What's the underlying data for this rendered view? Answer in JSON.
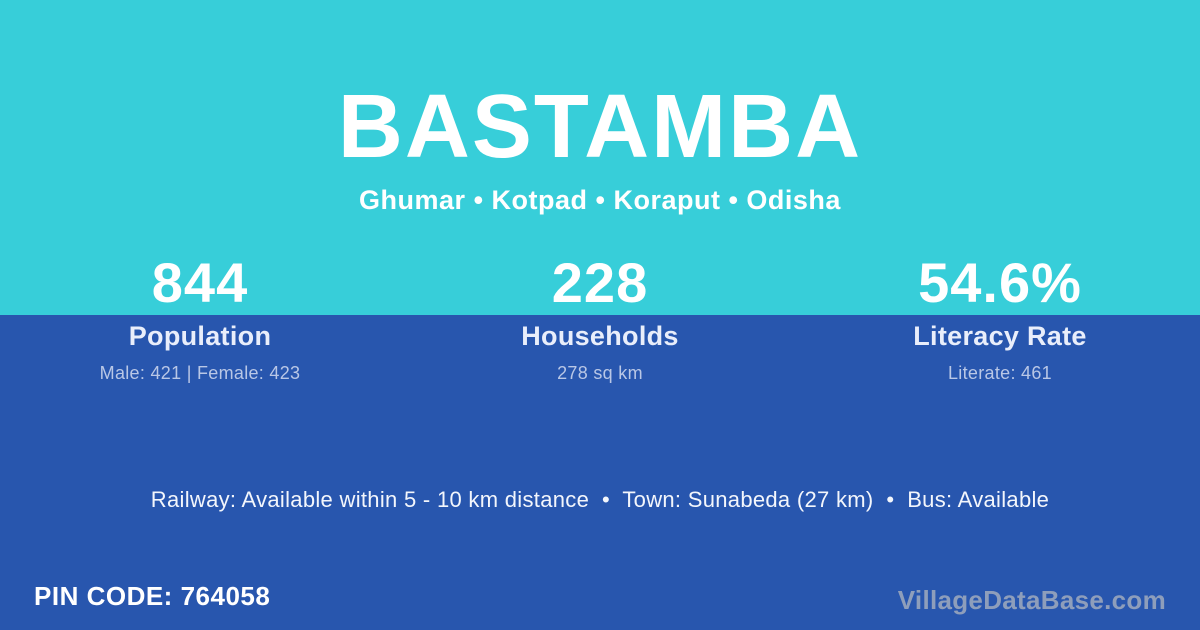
{
  "theme": {
    "cyan_bg": "#37ced9",
    "blue_bg": "#2856ae",
    "text_white": "#ffffff",
    "label_color": "#e9eefb",
    "detail_color": "#b9c7e6",
    "watermark_color": "#b6bac1"
  },
  "header": {
    "title": "BASTAMBA",
    "subtitle": "Ghumar • Kotpad • Koraput • Odisha"
  },
  "stats": [
    {
      "value": "844",
      "label": "Population",
      "detail": "Male: 421 | Female: 423"
    },
    {
      "value": "228",
      "label": "Households",
      "detail": "278 sq km"
    },
    {
      "value": "54.6%",
      "label": "Literacy Rate",
      "detail": "Literate: 461"
    }
  ],
  "transport": {
    "text": "Railway: Available within 5 - 10 km distance  •  Town: Sunabeda (27 km)  •  Bus: Available"
  },
  "footer": {
    "pin_code": "PIN CODE: 764058",
    "watermark": "VillageDataBase.com"
  }
}
